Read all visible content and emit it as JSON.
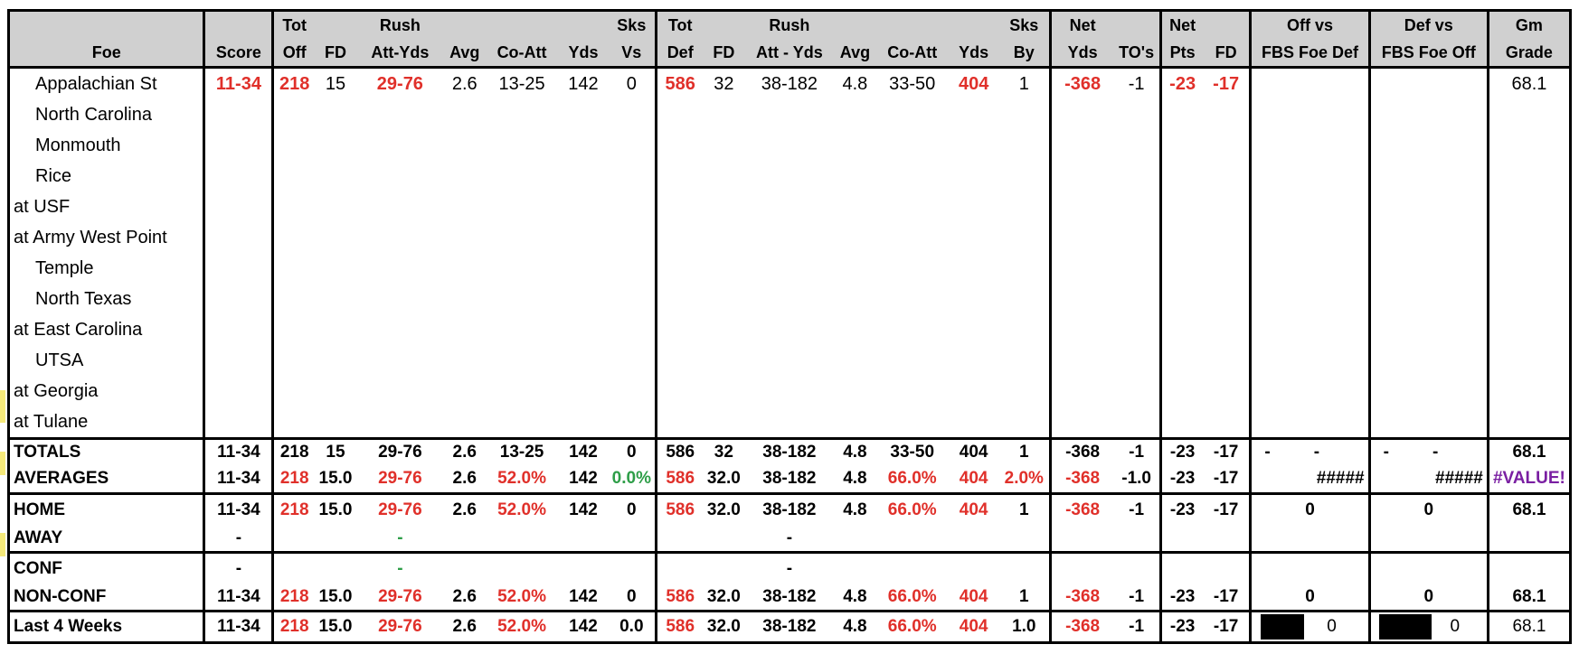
{
  "headers": {
    "row1": [
      "",
      "",
      "Tot",
      "",
      "Rush",
      "",
      "",
      "",
      "Sks",
      "Tot",
      "",
      "Rush",
      "",
      "",
      "",
      "Sks",
      "Net",
      "",
      "Net",
      "",
      "Off vs",
      "Def vs",
      "Gm"
    ],
    "row2": [
      "Foe",
      "Score",
      "Off",
      "FD",
      "Att-Yds",
      "Avg",
      "Co-Att",
      "Yds",
      "Vs",
      "Def",
      "FD",
      "Att - Yds",
      "Avg",
      "Co-Att",
      "Yds",
      "By",
      "Yds",
      "TO's",
      "Pts",
      "FD",
      "FBS Foe Def",
      "FBS Foe Off",
      "Grade"
    ]
  },
  "games": [
    {
      "foe": "Appalachian St",
      "away": false,
      "score": "11-34",
      "tot_off": "218",
      "fd": "15",
      "rush": "29-76",
      "avg": "2.6",
      "co_att": "13-25",
      "yds": "142",
      "sks_vs": "0",
      "tot_def": "586",
      "dfd": "32",
      "drush": "38-182",
      "davg": "4.8",
      "dco_att": "33-50",
      "dyds": "404",
      "sks_by": "1",
      "net_yds": "-368",
      "to": "-1",
      "net_pts": "-23",
      "net_fd": "-17",
      "grade": "68.1"
    },
    {
      "foe": "North Carolina",
      "away": false
    },
    {
      "foe": "Monmouth",
      "away": false
    },
    {
      "foe": "Rice",
      "away": false
    },
    {
      "foe": "at USF",
      "away": true
    },
    {
      "foe": "at Army West Point",
      "away": true
    },
    {
      "foe": "Temple",
      "away": false
    },
    {
      "foe": "North Texas",
      "away": false
    },
    {
      "foe": "at East Carolina",
      "away": true
    },
    {
      "foe": "UTSA",
      "away": false
    },
    {
      "foe": "at Georgia",
      "away": true
    },
    {
      "foe": "at Tulane",
      "away": true
    }
  ],
  "summary": {
    "totals": {
      "label": "TOTALS",
      "score": "11-34",
      "tot_off": "218",
      "fd": "15",
      "rush": "29-76",
      "avg": "2.6",
      "co_att": "13-25",
      "yds": "142",
      "sks_vs": "0",
      "tot_def": "586",
      "dfd": "32",
      "drush": "38-182",
      "davg": "4.8",
      "dco_att": "33-50",
      "dyds": "404",
      "sks_by": "1",
      "net_yds": "-368",
      "to": "-1",
      "net_pts": "-23",
      "net_fd": "-17",
      "offa": "-",
      "offb": "-",
      "defa": "-",
      "defb": "-",
      "grade": "68.1"
    },
    "averages": {
      "label": "AVERAGES",
      "score": "11-34",
      "tot_off": "218",
      "fd": "15.0",
      "rush": "29-76",
      "avg": "2.6",
      "co_att": "52.0%",
      "yds": "142",
      "sks_vs": "0.0%",
      "tot_def": "586",
      "dfd": "32.0",
      "drush": "38-182",
      "davg": "4.8",
      "dco_att": "66.0%",
      "dyds": "404",
      "sks_by": "2.0%",
      "net_yds": "-368",
      "to": "-1.0",
      "net_pts": "-23",
      "net_fd": "-17",
      "off_fbs": "#####",
      "def_fbs": "#####",
      "grade": "#VALUE!"
    },
    "home": {
      "label": "HOME",
      "score": "11-34",
      "tot_off": "218",
      "fd": "15.0",
      "rush": "29-76",
      "avg": "2.6",
      "co_att": "52.0%",
      "yds": "142",
      "sks_vs": "0",
      "tot_def": "586",
      "dfd": "32.0",
      "drush": "38-182",
      "davg": "4.8",
      "dco_att": "66.0%",
      "dyds": "404",
      "sks_by": "1",
      "net_yds": "-368",
      "to": "-1",
      "net_pts": "-23",
      "net_fd": "-17",
      "off_fbs": "0",
      "def_fbs": "0",
      "grade": "68.1"
    },
    "away": {
      "label": "AWAY",
      "score": "-",
      "rush": "-",
      "drush": "-"
    },
    "conf": {
      "label": "CONF",
      "score": "-",
      "rush": "-",
      "drush": "-"
    },
    "nonconf": {
      "label": "NON-CONF",
      "score": "11-34",
      "tot_off": "218",
      "fd": "15.0",
      "rush": "29-76",
      "avg": "2.6",
      "co_att": "52.0%",
      "yds": "142",
      "sks_vs": "0",
      "tot_def": "586",
      "dfd": "32.0",
      "drush": "38-182",
      "davg": "4.8",
      "dco_att": "66.0%",
      "dyds": "404",
      "sks_by": "1",
      "net_yds": "-368",
      "to": "-1",
      "net_pts": "-23",
      "net_fd": "-17",
      "off_fbs": "0",
      "def_fbs": "0",
      "grade": "68.1"
    },
    "last4": {
      "label": "Last 4 Weeks",
      "score": "11-34",
      "tot_off": "218",
      "fd": "15.0",
      "rush": "29-76",
      "avg": "2.6",
      "co_att": "52.0%",
      "yds": "142",
      "sks_vs": "0.0",
      "tot_def": "586",
      "dfd": "32.0",
      "drush": "38-182",
      "davg": "4.8",
      "dco_att": "66.0%",
      "dyds": "404",
      "sks_by": "1.0",
      "net_yds": "-368",
      "to": "-1",
      "net_pts": "-23",
      "net_fd": "-17",
      "off_fbs": "0",
      "def_fbs": "0",
      "grade": "68.1"
    }
  },
  "colors": {
    "negative": "#e0302a",
    "positive": "#2e9e48",
    "error": "#7a1fa2",
    "header_bg": "#d0d0d0"
  }
}
